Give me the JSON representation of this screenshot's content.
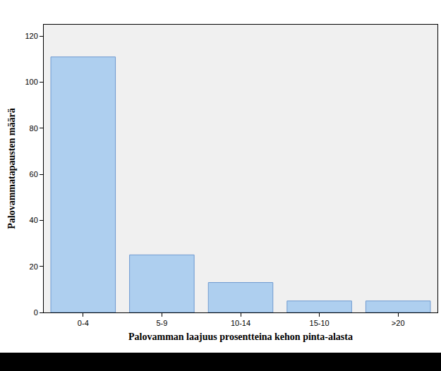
{
  "chart_data": {
    "type": "bar",
    "x_label": "Palovamman laajuus prosentteina kehon pinta-alasta",
    "y_label": "Palovammatapausten määrä",
    "categories": [
      "0-4",
      "5-9",
      "10-14",
      "15-10",
      ">20"
    ],
    "values": [
      111,
      25,
      13,
      5,
      5
    ],
    "color": "#aecfef",
    "ylim": [
      0,
      125
    ],
    "yticks": [
      0,
      20,
      40,
      60,
      80,
      100,
      120
    ],
    "grid": false
  }
}
